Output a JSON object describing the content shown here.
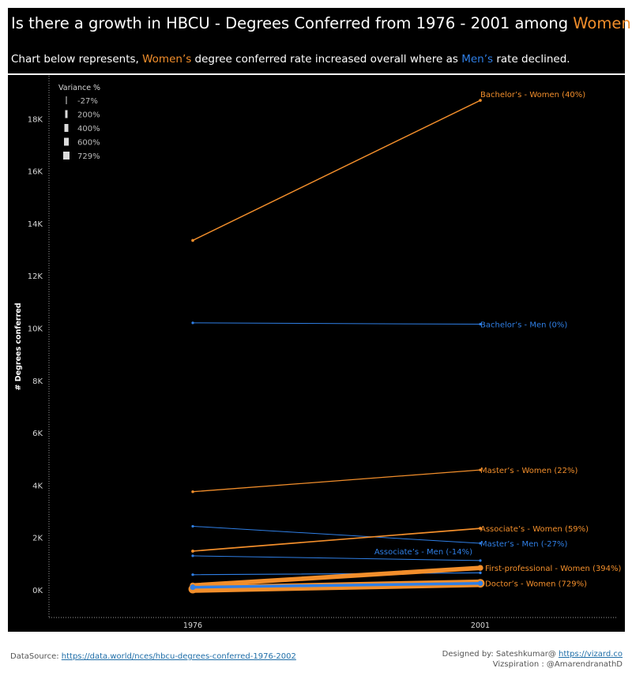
{
  "header": {
    "title_prefix": "Is there a growth in HBCU - Degrees Conferred from 1976 - 2001 among ",
    "title_highlight": "Women?",
    "subtitle_part1": "Chart below represents, ",
    "subtitle_women": "Women’s",
    "subtitle_part2": " degree conferred rate increased overall where as ",
    "subtitle_men": "Men’s",
    "subtitle_part3": " rate declined."
  },
  "colors": {
    "women": "#f28e2b",
    "men": "#2f7fe6",
    "background": "#000000",
    "text": "#ffffff"
  },
  "chart_data": {
    "type": "line",
    "x": [
      "1976",
      "2001"
    ],
    "ylabel": "# Degrees conferred",
    "ylim": [
      -1000,
      19200
    ],
    "yticks": [
      0,
      2000,
      4000,
      6000,
      8000,
      10000,
      12000,
      14000,
      16000,
      18000
    ],
    "ytick_labels": [
      "0K",
      "2K",
      "4K",
      "6K",
      "8K",
      "10K",
      "12K",
      "14K",
      "16K",
      "18K"
    ],
    "legend": {
      "title": "Variance %",
      "position": "top-left",
      "items": [
        "-27%",
        "200%",
        "400%",
        "600%",
        "729%"
      ]
    },
    "series": [
      {
        "name": "Bachelor’s - Women (40%)",
        "group": "women",
        "values": [
          13350,
          18700
        ],
        "variance": 40
      },
      {
        "name": "Bachelor’s - Men (0%)",
        "group": "men",
        "values": [
          10200,
          10150
        ],
        "variance": 0
      },
      {
        "name": "Master’s - Women (22%)",
        "group": "women",
        "values": [
          3750,
          4580
        ],
        "variance": 22
      },
      {
        "name": "Associate’s - Women (59%)",
        "group": "women",
        "values": [
          1480,
          2350
        ],
        "variance": 59
      },
      {
        "name": "Master’s - Men (-27%)",
        "group": "men",
        "values": [
          2430,
          1780
        ],
        "variance": -27
      },
      {
        "name": "Associate’s - Men (-14%)",
        "group": "men",
        "values": [
          1300,
          1120
        ],
        "variance": -14
      },
      {
        "name": "",
        "group": "men",
        "values": [
          580,
          650
        ],
        "variance": 12
      },
      {
        "name": "First-professional - Women (394%)",
        "group": "women",
        "values": [
          170,
          840
        ],
        "variance": 394
      },
      {
        "name": "",
        "group": "men",
        "values": [
          100,
          250
        ],
        "variance": 150
      },
      {
        "name": "Doctor’s - Women (729%)",
        "group": "women",
        "values": [
          30,
          250
        ],
        "variance": 729
      }
    ]
  },
  "footer": {
    "datasource_label": "DataSource: ",
    "datasource_link": "https://data.world/nces/hbcu-degrees-conferred-1976-2002",
    "designed_label": "Designed by: Sateshkumar@ ",
    "designed_link": "https://vizard.co",
    "vizspiration": "Vizspiration : @AmarendranathD"
  }
}
